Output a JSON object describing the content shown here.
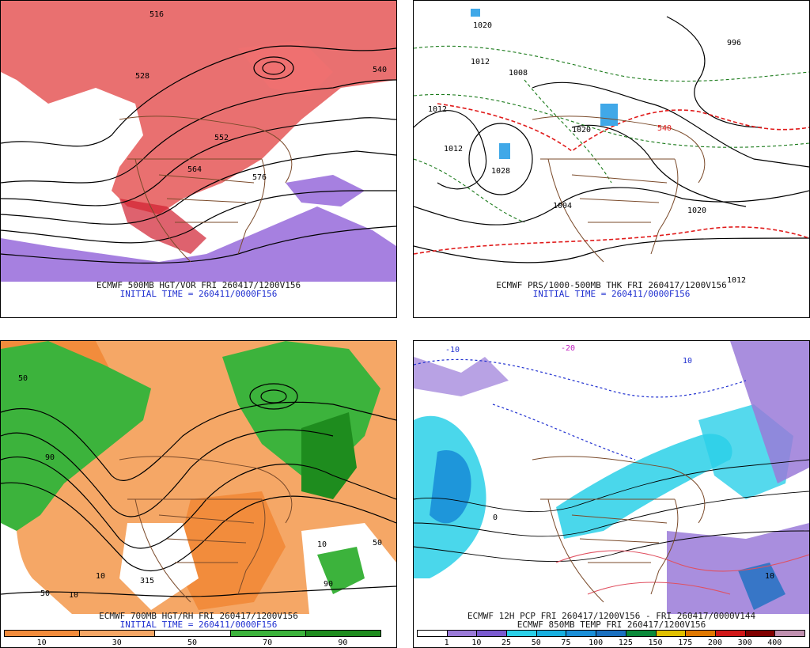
{
  "panels": {
    "top_left": {
      "title": "ECMWF 500MB HGT/VOR FRI 260417/1200V156",
      "subtitle": "INITIAL TIME = 260411/0000F156",
      "contour_labels": [
        "516",
        "528",
        "540",
        "552",
        "564",
        "576"
      ]
    },
    "top_right": {
      "title": "ECMWF PRS/1000-500MB THK FRI 260417/1200V156",
      "subtitle": "INITIAL TIME = 260411/0000F156",
      "contour_labels": [
        "1020",
        "1012",
        "1012",
        "1012",
        "1008",
        "1028",
        "1020",
        "996",
        "1004",
        "1020",
        "1012",
        "540"
      ]
    },
    "bottom_left": {
      "title": "ECMWF 700MB HGT/RH FRI 260417/1200V156",
      "subtitle": "INITIAL TIME = 260411/0000F156",
      "contour_labels": [
        "50",
        "10",
        "90",
        "315",
        "50",
        "10",
        "10",
        "50",
        "90"
      ],
      "colorbar": {
        "labels": [
          "10",
          "30",
          "50",
          "70",
          "90"
        ],
        "colors": [
          "#f28c3c",
          "#f5a766",
          "#ffffff",
          "#3cb33c",
          "#1e8c1e"
        ]
      }
    },
    "bottom_right": {
      "title": "ECMWF 12H PCP FRI 260417/1200V156 - FRI 260417/0000V144",
      "subtitle": "ECMWF 850MB TEMP FRI 260417/1200V156",
      "contour_labels": [
        "-10",
        "-20",
        "10",
        "0",
        "10"
      ],
      "colorbar": {
        "labels": [
          "1",
          "10",
          "25",
          "50",
          "75",
          "100",
          "125",
          "150",
          "175",
          "200",
          "300",
          "400"
        ],
        "colors": [
          "#ffffff",
          "#9a7ad8",
          "#7a5ad0",
          "#2ad0e8",
          "#18b0e0",
          "#1a8fd8",
          "#1a70c0",
          "#0a8a3a",
          "#e0c000",
          "#e07800",
          "#d01818",
          "#800000",
          "#c090b0"
        ]
      }
    }
  }
}
